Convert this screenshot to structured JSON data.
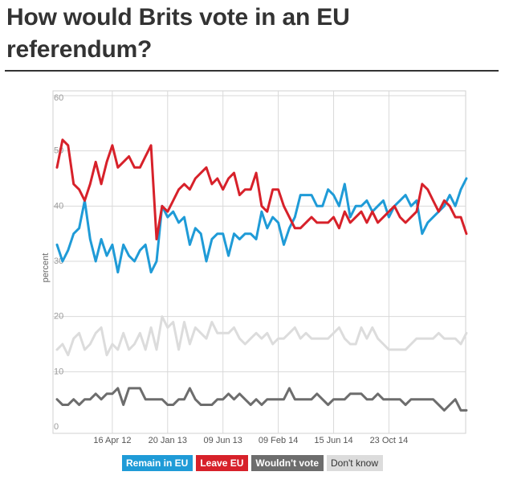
{
  "title": "How would Brits vote in an EU referendum?",
  "colors": {
    "remain": "#1f9bd7",
    "leave": "#d7212a",
    "wouldnt": "#6d6d6d",
    "dontknow": "#dcdcdc",
    "grid": "#d9d9d9",
    "axis_text": "#9a9a9a"
  },
  "legend": [
    {
      "label": "Remain in EU",
      "color_key": "remain"
    },
    {
      "label": "Leave EU",
      "color_key": "leave"
    },
    {
      "label": "Wouldn't vote",
      "color_key": "wouldnt"
    },
    {
      "label": "Don't know",
      "color_key": "dontknow"
    }
  ],
  "chart_data": {
    "type": "line",
    "title": "How would Brits vote in an EU referendum?",
    "ylabel": "percent",
    "xlabel": "",
    "ylim": [
      0,
      60
    ],
    "yticks": [
      0,
      10,
      20,
      30,
      40,
      50,
      60
    ],
    "ytick_labels": [
      "0",
      "10",
      "20",
      "30",
      "40",
      "50",
      "60"
    ],
    "xlim": [
      0,
      73
    ],
    "xticks": [
      {
        "x": 10,
        "label": "16 Apr 12"
      },
      {
        "x": 20,
        "label": "20 Jan 13"
      },
      {
        "x": 30,
        "label": "09 Jun 13"
      },
      {
        "x": 40,
        "label": "09 Feb 14"
      },
      {
        "x": 50,
        "label": "15 Jun 14"
      },
      {
        "x": 60,
        "label": "23 Oct 14"
      }
    ],
    "grid": true,
    "series": [
      {
        "name": "Remain in EU",
        "color_key": "remain",
        "values": [
          33,
          30,
          32,
          35,
          36,
          41,
          34,
          30,
          34,
          31,
          33,
          28,
          33,
          31,
          30,
          32,
          33,
          28,
          30,
          40,
          38,
          39,
          37,
          38,
          33,
          36,
          35,
          30,
          34,
          35,
          35,
          31,
          35,
          34,
          35,
          35,
          34,
          39,
          36,
          38,
          37,
          33,
          36,
          38,
          42,
          42,
          42,
          40,
          40,
          43,
          42,
          40,
          44,
          38,
          40,
          40,
          41,
          39,
          40,
          41,
          38,
          40,
          41,
          42,
          40,
          41,
          35,
          37,
          38,
          39,
          40,
          42,
          40,
          43,
          45
        ]
      },
      {
        "name": "Leave EU",
        "color_key": "leave",
        "values": [
          47,
          52,
          51,
          44,
          43,
          41,
          44,
          48,
          44,
          48,
          51,
          47,
          48,
          49,
          47,
          47,
          49,
          51,
          34,
          40,
          39,
          41,
          43,
          44,
          43,
          45,
          46,
          47,
          44,
          45,
          43,
          45,
          46,
          42,
          43,
          43,
          46,
          40,
          39,
          43,
          43,
          40,
          38,
          36,
          36,
          37,
          38,
          37,
          37,
          37,
          38,
          36,
          39,
          37,
          38,
          39,
          37,
          39,
          37,
          38,
          39,
          40,
          38,
          37,
          38,
          39,
          44,
          43,
          41,
          39,
          41,
          40,
          38,
          38,
          35
        ]
      },
      {
        "name": "Wouldn't vote",
        "color_key": "wouldnt",
        "values": [
          5,
          4,
          4,
          5,
          4,
          5,
          5,
          6,
          5,
          6,
          6,
          7,
          4,
          7,
          7,
          7,
          5,
          5,
          5,
          5,
          4,
          4,
          5,
          5,
          7,
          5,
          4,
          4,
          4,
          5,
          5,
          6,
          5,
          6,
          5,
          4,
          5,
          4,
          5,
          5,
          5,
          5,
          7,
          5,
          5,
          5,
          5,
          6,
          5,
          4,
          5,
          5,
          5,
          6,
          6,
          6,
          5,
          5,
          6,
          5,
          5,
          5,
          5,
          4,
          5,
          5,
          5,
          5,
          5,
          4,
          3,
          4,
          5,
          3,
          3
        ]
      },
      {
        "name": "Don't know",
        "color_key": "dontknow",
        "values": [
          14,
          15,
          13,
          16,
          17,
          14,
          15,
          17,
          18,
          13,
          15,
          14,
          17,
          14,
          15,
          17,
          14,
          18,
          14,
          20,
          18,
          19,
          14,
          19,
          15,
          18,
          17,
          16,
          19,
          17,
          17,
          17,
          18,
          16,
          15,
          16,
          17,
          16,
          17,
          15,
          16,
          16,
          17,
          18,
          16,
          17,
          16,
          16,
          16,
          16,
          17,
          18,
          16,
          15,
          15,
          18,
          16,
          18,
          16,
          15,
          14,
          14,
          14,
          14,
          15,
          16,
          16,
          16,
          16,
          17,
          16,
          16,
          16,
          15,
          17
        ]
      }
    ]
  }
}
